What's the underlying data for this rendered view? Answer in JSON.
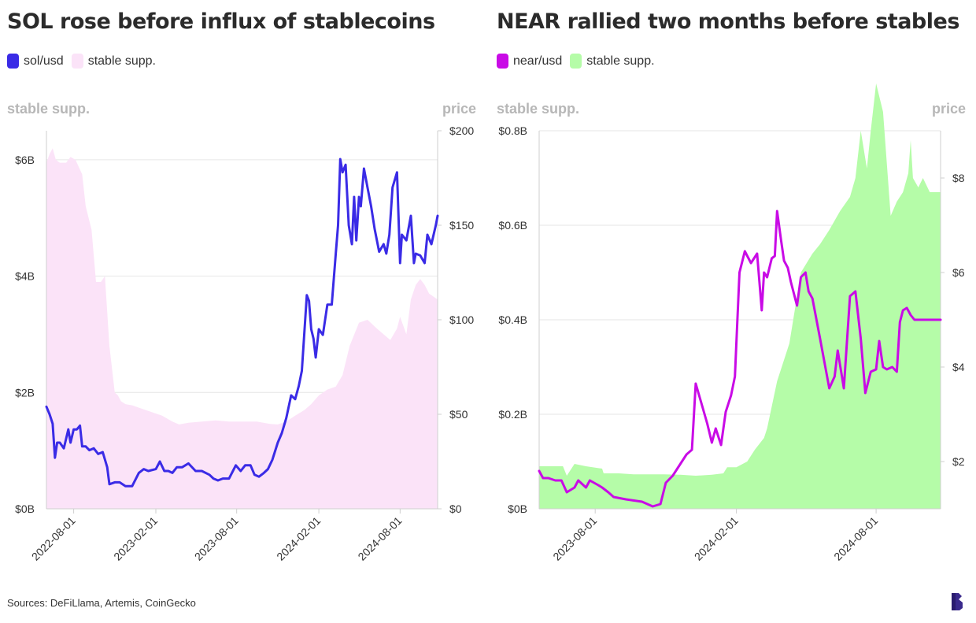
{
  "footer": {
    "source_text": "Sources: DeFiLlama, Artemis, CoinGecko"
  },
  "logo": {
    "icon": "brand-b-logo",
    "color": "#3a2a8c"
  },
  "chart_data": [
    {
      "type": "line",
      "title": "SOL rose before influx of stablecoins",
      "left_axis_label": "stable supp.",
      "right_axis_label": "price",
      "x_ticks": [
        "2022-08-01",
        "2023-02-01",
        "2023-08-01",
        "2024-02-01",
        "2024-08-01"
      ],
      "left_ticks": [
        "$0B",
        "$2B",
        "$4B",
        "$6B"
      ],
      "right_ticks": [
        "$0",
        "$50",
        "$100",
        "$150",
        "$200"
      ],
      "left_ylim": [
        0,
        6.5
      ],
      "right_ylim": [
        0,
        200
      ],
      "xlim": [
        "2022-06-01",
        "2024-10-24"
      ],
      "grid": true,
      "legend_position": "top-left",
      "series": [
        {
          "name": "stable supp.",
          "kind": "area",
          "axis": "left",
          "color": "#fbe3f8",
          "x": [
            "2022-06-01",
            "2022-06-08",
            "2022-06-15",
            "2022-06-22",
            "2022-07-01",
            "2022-07-15",
            "2022-07-25",
            "2022-08-05",
            "2022-08-20",
            "2022-08-28",
            "2022-09-10",
            "2022-09-20",
            "2022-10-01",
            "2022-10-10",
            "2022-10-20",
            "2022-11-01",
            "2022-11-08",
            "2022-11-15",
            "2022-11-25",
            "2022-12-10",
            "2023-01-01",
            "2023-02-15",
            "2023-03-10",
            "2023-03-25",
            "2023-04-15",
            "2023-05-15",
            "2023-06-15",
            "2023-07-15",
            "2023-08-15",
            "2023-09-15",
            "2023-10-15",
            "2023-11-01",
            "2023-11-20",
            "2023-12-10",
            "2023-12-31",
            "2024-01-15",
            "2024-02-01",
            "2024-02-20",
            "2024-03-10",
            "2024-03-25",
            "2024-04-10",
            "2024-05-01",
            "2024-05-20",
            "2024-06-10",
            "2024-06-25",
            "2024-07-10",
            "2024-07-25",
            "2024-08-01",
            "2024-08-15",
            "2024-08-25",
            "2024-09-05",
            "2024-09-15",
            "2024-09-25",
            "2024-10-05",
            "2024-10-24"
          ],
          "values": [
            5.95,
            6.1,
            6.2,
            6.0,
            5.95,
            5.95,
            6.05,
            6.0,
            5.75,
            5.2,
            4.8,
            3.9,
            3.9,
            4.0,
            2.8,
            2.0,
            1.95,
            1.85,
            1.8,
            1.78,
            1.72,
            1.6,
            1.5,
            1.45,
            1.48,
            1.5,
            1.52,
            1.5,
            1.5,
            1.5,
            1.46,
            1.45,
            1.5,
            1.6,
            1.7,
            1.8,
            1.95,
            2.05,
            2.1,
            2.3,
            2.8,
            3.2,
            3.25,
            3.1,
            3.0,
            2.9,
            3.1,
            3.3,
            3.0,
            3.6,
            3.85,
            3.95,
            3.85,
            3.7,
            3.6
          ]
        },
        {
          "name": "sol/usd",
          "kind": "line",
          "axis": "right",
          "color": "#3a2be6",
          "x": [
            "2022-06-01",
            "2022-06-08",
            "2022-06-15",
            "2022-06-20",
            "2022-06-25",
            "2022-07-01",
            "2022-07-10",
            "2022-07-20",
            "2022-07-25",
            "2022-08-01",
            "2022-08-08",
            "2022-08-15",
            "2022-08-20",
            "2022-08-28",
            "2022-09-05",
            "2022-09-15",
            "2022-09-25",
            "2022-10-05",
            "2022-10-15",
            "2022-10-20",
            "2022-11-01",
            "2022-11-07",
            "2022-11-12",
            "2022-11-25",
            "2022-12-10",
            "2022-12-25",
            "2023-01-05",
            "2023-01-15",
            "2023-02-01",
            "2023-02-10",
            "2023-02-20",
            "2023-03-01",
            "2023-03-10",
            "2023-03-20",
            "2023-04-01",
            "2023-04-15",
            "2023-05-01",
            "2023-05-15",
            "2023-06-01",
            "2023-06-10",
            "2023-06-20",
            "2023-07-01",
            "2023-07-15",
            "2023-07-30",
            "2023-08-10",
            "2023-08-20",
            "2023-09-01",
            "2023-09-10",
            "2023-09-20",
            "2023-10-01",
            "2023-10-10",
            "2023-10-20",
            "2023-11-01",
            "2023-11-10",
            "2023-11-20",
            "2023-12-01",
            "2023-12-10",
            "2023-12-18",
            "2023-12-25",
            "2024-01-05",
            "2024-01-10",
            "2024-01-15",
            "2024-01-20",
            "2024-01-25",
            "2024-02-01",
            "2024-02-10",
            "2024-02-20",
            "2024-03-01",
            "2024-03-10",
            "2024-03-15",
            "2024-03-20",
            "2024-03-25",
            "2024-04-01",
            "2024-04-08",
            "2024-04-15",
            "2024-04-20",
            "2024-04-25",
            "2024-05-01",
            "2024-05-05",
            "2024-05-12",
            "2024-05-20",
            "2024-05-28",
            "2024-06-05",
            "2024-06-15",
            "2024-06-25",
            "2024-07-01",
            "2024-07-08",
            "2024-07-15",
            "2024-07-25",
            "2024-08-01",
            "2024-08-05",
            "2024-08-15",
            "2024-08-25",
            "2024-09-01",
            "2024-09-05",
            "2024-09-15",
            "2024-09-25",
            "2024-10-01",
            "2024-10-10",
            "2024-10-20",
            "2024-10-24"
          ],
          "values": [
            54,
            50,
            45,
            27,
            35,
            35,
            32,
            42,
            35,
            42,
            42,
            44,
            33,
            33,
            31,
            32,
            29,
            30,
            22,
            13,
            14,
            14,
            14,
            12,
            12,
            19,
            21,
            20,
            21,
            25,
            20,
            20,
            19,
            22,
            22,
            24,
            20,
            20,
            18,
            16,
            15,
            16,
            16,
            23,
            20,
            23,
            23,
            18,
            17,
            19,
            21,
            26,
            35,
            40,
            48,
            60,
            58,
            65,
            73,
            113,
            110,
            95,
            90,
            80,
            95,
            92,
            108,
            108,
            135,
            150,
            185,
            178,
            182,
            150,
            140,
            165,
            142,
            165,
            160,
            180,
            170,
            160,
            148,
            136,
            140,
            135,
            145,
            170,
            178,
            130,
            145,
            142,
            155,
            130,
            135,
            134,
            130,
            145,
            140,
            150,
            155
          ]
        }
      ]
    },
    {
      "type": "line",
      "title": "NEAR rallied two months before stables",
      "left_axis_label": "stable supp.",
      "right_axis_label": "price",
      "x_ticks": [
        "2023-08-01",
        "2024-02-01",
        "2024-08-01"
      ],
      "left_ticks": [
        "$0B",
        "$0.2B",
        "$0.4B",
        "$0.6B",
        "$0.8B"
      ],
      "right_ticks": [
        "$2",
        "$4",
        "$6",
        "$8"
      ],
      "left_ylim": [
        0,
        0.8
      ],
      "right_ylim": [
        1,
        9
      ],
      "xlim": [
        "2023-05-20",
        "2024-10-24"
      ],
      "grid": true,
      "legend_position": "top-left",
      "series": [
        {
          "name": "stable supp.",
          "kind": "area",
          "axis": "left",
          "color": "#b5fca8",
          "x": [
            "2023-05-20",
            "2023-06-20",
            "2023-06-25",
            "2023-07-05",
            "2023-07-20",
            "2023-08-10",
            "2023-08-12",
            "2023-09-01",
            "2023-09-20",
            "2023-10-10",
            "2023-10-30",
            "2023-11-20",
            "2023-12-10",
            "2023-12-31",
            "2024-01-15",
            "2024-01-20",
            "2024-02-01",
            "2024-02-15",
            "2024-02-25",
            "2024-03-08",
            "2024-03-12",
            "2024-03-25",
            "2024-04-10",
            "2024-04-25",
            "2024-05-10",
            "2024-05-20",
            "2024-06-01",
            "2024-06-15",
            "2024-06-28",
            "2024-07-05",
            "2024-07-12",
            "2024-07-20",
            "2024-07-25",
            "2024-08-01",
            "2024-08-10",
            "2024-08-20",
            "2024-08-28",
            "2024-09-05",
            "2024-09-12",
            "2024-09-15",
            "2024-09-18",
            "2024-09-25",
            "2024-10-01",
            "2024-10-10",
            "2024-10-24"
          ],
          "values": [
            0.09,
            0.09,
            0.07,
            0.095,
            0.09,
            0.085,
            0.075,
            0.075,
            0.073,
            0.073,
            0.073,
            0.072,
            0.07,
            0.072,
            0.075,
            0.088,
            0.088,
            0.1,
            0.125,
            0.15,
            0.17,
            0.27,
            0.35,
            0.5,
            0.54,
            0.56,
            0.59,
            0.63,
            0.66,
            0.7,
            0.8,
            0.72,
            0.8,
            0.9,
            0.84,
            0.62,
            0.65,
            0.67,
            0.71,
            0.78,
            0.7,
            0.68,
            0.7,
            0.67,
            0.67
          ]
        },
        {
          "name": "near/usd",
          "kind": "line",
          "axis": "right",
          "color": "#c90be6",
          "x": [
            "2023-05-20",
            "2023-05-25",
            "2023-06-01",
            "2023-06-10",
            "2023-06-18",
            "2023-06-25",
            "2023-07-05",
            "2023-07-10",
            "2023-07-20",
            "2023-07-25",
            "2023-08-05",
            "2023-08-10",
            "2023-08-18",
            "2023-08-25",
            "2023-09-10",
            "2023-10-01",
            "2023-10-15",
            "2023-10-25",
            "2023-11-01",
            "2023-11-10",
            "2023-11-20",
            "2023-11-28",
            "2023-12-05",
            "2023-12-10",
            "2023-12-18",
            "2023-12-25",
            "2023-12-31",
            "2024-01-05",
            "2024-01-12",
            "2024-01-18",
            "2024-01-25",
            "2024-01-30",
            "2024-02-05",
            "2024-02-12",
            "2024-02-20",
            "2024-02-28",
            "2024-03-05",
            "2024-03-08",
            "2024-03-12",
            "2024-03-18",
            "2024-03-22",
            "2024-03-25",
            "2024-03-30",
            "2024-04-03",
            "2024-04-08",
            "2024-04-12",
            "2024-04-20",
            "2024-04-25",
            "2024-05-01",
            "2024-05-05",
            "2024-05-10",
            "2024-05-20",
            "2024-06-01",
            "2024-06-08",
            "2024-06-12",
            "2024-06-20",
            "2024-06-28",
            "2024-07-05",
            "2024-07-12",
            "2024-07-18",
            "2024-07-25",
            "2024-08-01",
            "2024-08-05",
            "2024-08-10",
            "2024-08-15",
            "2024-08-22",
            "2024-08-28",
            "2024-09-01",
            "2024-09-05",
            "2024-09-10",
            "2024-09-15",
            "2024-09-20",
            "2024-09-25",
            "2024-10-01",
            "2024-10-08",
            "2024-10-15",
            "2024-10-24"
          ],
          "values": [
            1.8,
            1.65,
            1.65,
            1.6,
            1.6,
            1.35,
            1.45,
            1.6,
            1.45,
            1.6,
            1.5,
            1.45,
            1.35,
            1.25,
            1.2,
            1.15,
            1.05,
            1.1,
            1.55,
            1.7,
            1.95,
            2.15,
            2.25,
            3.65,
            3.2,
            2.8,
            2.4,
            2.7,
            2.35,
            3.05,
            3.4,
            3.8,
            6.0,
            6.45,
            6.2,
            6.4,
            5.2,
            6.0,
            5.9,
            6.3,
            6.35,
            7.3,
            6.7,
            6.25,
            6.1,
            5.8,
            5.3,
            5.9,
            6.0,
            5.6,
            5.45,
            4.6,
            3.55,
            3.8,
            4.35,
            3.55,
            5.5,
            5.6,
            4.6,
            3.45,
            3.9,
            3.95,
            4.55,
            4.0,
            3.95,
            4.0,
            3.9,
            4.95,
            5.2,
            5.25,
            5.1,
            5.0,
            5.0,
            5.0,
            5.0,
            5.0,
            5.0
          ]
        }
      ]
    }
  ]
}
